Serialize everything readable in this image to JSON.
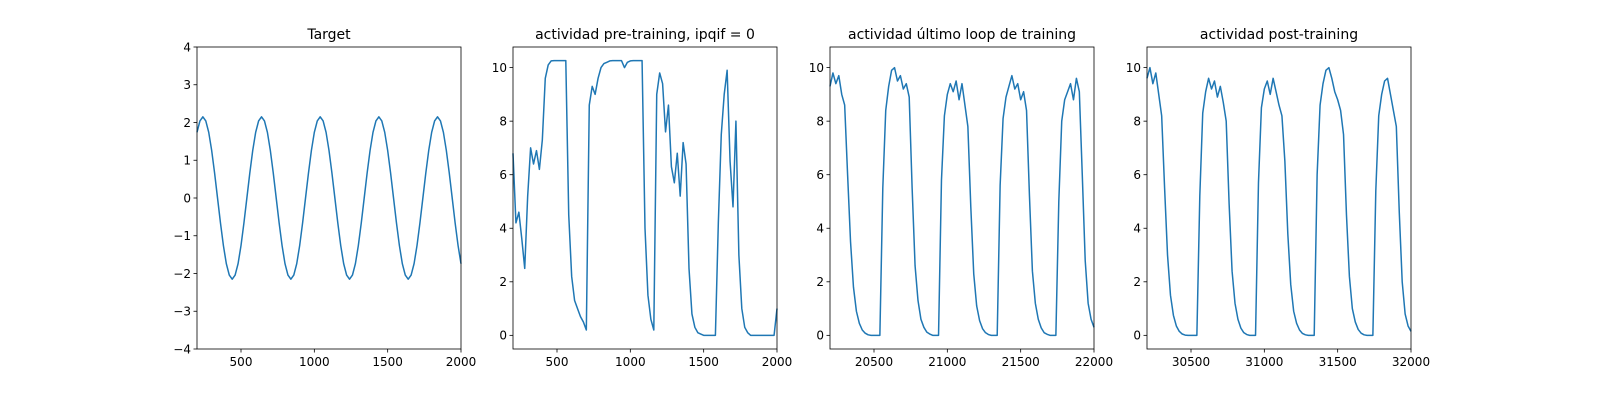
{
  "chart_data": [
    {
      "type": "line",
      "title": "Target",
      "color": "#1f77b4",
      "x": [
        200,
        220,
        240,
        260,
        280,
        300,
        320,
        340,
        360,
        380,
        400,
        420,
        440,
        460,
        480,
        500,
        520,
        540,
        560,
        580,
        600,
        620,
        640,
        660,
        680,
        700,
        720,
        740,
        760,
        780,
        800,
        820,
        840,
        860,
        880,
        900,
        920,
        940,
        960,
        980,
        1000,
        1020,
        1040,
        1060,
        1080,
        1100,
        1120,
        1140,
        1160,
        1180,
        1200,
        1220,
        1240,
        1260,
        1280,
        1300,
        1320,
        1340,
        1360,
        1380,
        1400,
        1420,
        1440,
        1460,
        1480,
        1500,
        1520,
        1540,
        1560,
        1580,
        1600,
        1620,
        1640,
        1660,
        1680,
        1700,
        1720,
        1740,
        1760,
        1780,
        1800,
        1820,
        1840,
        1860,
        1880,
        1900,
        1920,
        1940,
        1960,
        1980,
        2000
      ],
      "values": [
        1.74,
        2.04,
        2.15,
        2.04,
        1.74,
        1.26,
        0.66,
        0,
        -0.66,
        -1.26,
        -1.74,
        -2.04,
        -2.15,
        -2.04,
        -1.74,
        -1.26,
        -0.66,
        0,
        0.66,
        1.26,
        1.74,
        2.04,
        2.15,
        2.04,
        1.74,
        1.26,
        0.66,
        0,
        -0.66,
        -1.26,
        -1.74,
        -2.04,
        -2.15,
        -2.04,
        -1.74,
        -1.26,
        -0.66,
        0,
        0.66,
        1.26,
        1.74,
        2.04,
        2.15,
        2.04,
        1.74,
        1.26,
        0.66,
        0,
        -0.66,
        -1.26,
        -1.74,
        -2.04,
        -2.15,
        -2.04,
        -1.74,
        -1.26,
        -0.66,
        0,
        0.66,
        1.26,
        1.74,
        2.04,
        2.15,
        2.04,
        1.74,
        1.26,
        0.66,
        0,
        -0.66,
        -1.26,
        -1.74,
        -2.04,
        -2.15,
        -2.04,
        -1.74,
        -1.26,
        -0.66,
        0,
        0.66,
        1.26,
        1.74,
        2.04,
        2.15,
        2.04,
        1.74,
        1.26,
        0.66,
        0,
        -0.66,
        -1.26,
        -1.74
      ],
      "xlim": [
        200,
        2000
      ],
      "ylim": [
        -4,
        4
      ],
      "xticks": [
        500,
        1000,
        1500,
        2000
      ],
      "yticks": [
        {
          "value": -4,
          "label": "−4"
        },
        {
          "value": -3,
          "label": "−3"
        },
        {
          "value": -2,
          "label": "−2"
        },
        {
          "value": -1,
          "label": "−1"
        },
        0,
        1,
        2,
        3,
        4
      ]
    },
    {
      "type": "line",
      "title": "actividad pre-training, ipqif = 0",
      "color": "#1f77b4",
      "x": [
        200,
        220,
        240,
        260,
        280,
        300,
        320,
        340,
        360,
        380,
        400,
        420,
        440,
        460,
        480,
        500,
        520,
        540,
        560,
        580,
        600,
        620,
        640,
        660,
        680,
        700,
        720,
        740,
        760,
        780,
        800,
        820,
        840,
        860,
        880,
        900,
        920,
        940,
        960,
        980,
        1000,
        1020,
        1040,
        1060,
        1080,
        1100,
        1120,
        1140,
        1160,
        1180,
        1200,
        1220,
        1240,
        1260,
        1280,
        1300,
        1320,
        1340,
        1360,
        1380,
        1400,
        1420,
        1440,
        1460,
        1480,
        1500,
        1520,
        1540,
        1560,
        1580,
        1600,
        1620,
        1640,
        1660,
        1680,
        1700,
        1720,
        1740,
        1760,
        1780,
        1800,
        1820,
        1840,
        1860,
        1880,
        1900,
        1920,
        1940,
        1960,
        1980,
        2000
      ],
      "values": [
        6.8,
        4.2,
        4.6,
        3.6,
        2.5,
        5.2,
        7.0,
        6.4,
        6.9,
        6.2,
        7.3,
        9.6,
        10.1,
        10.25,
        10.26,
        10.26,
        10.26,
        10.26,
        10.26,
        4.5,
        2.2,
        1.3,
        1.0,
        0.7,
        0.5,
        0.2,
        8.6,
        9.3,
        9.0,
        9.6,
        10.0,
        10.15,
        10.2,
        10.25,
        10.26,
        10.26,
        10.26,
        10.26,
        10.0,
        10.2,
        10.25,
        10.26,
        10.26,
        10.26,
        10.26,
        4.0,
        1.5,
        0.6,
        0.2,
        9.0,
        9.8,
        9.4,
        7.6,
        8.6,
        6.3,
        5.7,
        6.8,
        5.2,
        7.2,
        6.4,
        2.5,
        0.8,
        0.3,
        0.1,
        0.05,
        0,
        0,
        0,
        0,
        0,
        4.2,
        7.5,
        9.0,
        9.9,
        6.5,
        4.8,
        8.0,
        3.0,
        1.0,
        0.3,
        0.1,
        0,
        0,
        0,
        0,
        0,
        0,
        0,
        0,
        0,
        1.0
      ],
      "xlim": [
        200,
        2000
      ],
      "ylim": [
        -0.51,
        10.77
      ],
      "xticks": [
        500,
        1000,
        1500,
        2000
      ],
      "yticks": [
        0,
        2,
        4,
        6,
        8,
        10
      ]
    },
    {
      "type": "line",
      "title": "actividad último loop de training",
      "color": "#1f77b4",
      "x": [
        20200,
        20220,
        20240,
        20260,
        20280,
        20300,
        20320,
        20340,
        20360,
        20380,
        20400,
        20420,
        20440,
        20460,
        20480,
        20500,
        20520,
        20540,
        20560,
        20580,
        20600,
        20620,
        20640,
        20660,
        20680,
        20700,
        20720,
        20740,
        20760,
        20780,
        20800,
        20820,
        20840,
        20860,
        20880,
        20900,
        20920,
        20940,
        20960,
        20980,
        21000,
        21020,
        21040,
        21060,
        21080,
        21100,
        21120,
        21140,
        21160,
        21180,
        21200,
        21220,
        21240,
        21260,
        21280,
        21300,
        21320,
        21340,
        21360,
        21380,
        21400,
        21420,
        21440,
        21460,
        21480,
        21500,
        21520,
        21540,
        21560,
        21580,
        21600,
        21620,
        21640,
        21660,
        21680,
        21700,
        21720,
        21740,
        21760,
        21780,
        21800,
        21820,
        21840,
        21860,
        21880,
        21900,
        21920,
        21940,
        21960,
        21980,
        22000
      ],
      "values": [
        9.3,
        9.8,
        9.4,
        9.7,
        9.0,
        8.6,
        6.0,
        3.5,
        1.8,
        0.9,
        0.45,
        0.2,
        0.08,
        0.02,
        0,
        0,
        0,
        0,
        5.5,
        8.4,
        9.3,
        9.9,
        10.0,
        9.5,
        9.7,
        9.2,
        9.4,
        8.9,
        5.5,
        2.6,
        1.3,
        0.6,
        0.3,
        0.12,
        0.05,
        0,
        0,
        0,
        5.8,
        8.2,
        9.0,
        9.4,
        9.1,
        9.5,
        8.8,
        9.4,
        8.6,
        7.8,
        4.8,
        2.3,
        1.1,
        0.55,
        0.25,
        0.1,
        0.03,
        0,
        0,
        0,
        5.6,
        8.1,
        8.9,
        9.3,
        9.7,
        9.2,
        9.4,
        8.8,
        9.1,
        8.4,
        5.2,
        2.4,
        1.2,
        0.6,
        0.28,
        0.1,
        0.04,
        0,
        0,
        0,
        5.0,
        8.0,
        8.8,
        9.1,
        9.4,
        8.8,
        9.6,
        9.1,
        6.0,
        2.8,
        1.2,
        0.6,
        0.3
      ],
      "xlim": [
        20200,
        22000
      ],
      "ylim": [
        -0.51,
        10.77
      ],
      "xticks": [
        20500,
        21000,
        21500,
        22000
      ],
      "yticks": [
        0,
        2,
        4,
        6,
        8,
        10
      ]
    },
    {
      "type": "line",
      "title": "actividad post-training",
      "color": "#1f77b4",
      "x": [
        30200,
        30220,
        30240,
        30260,
        30280,
        30300,
        30320,
        30340,
        30360,
        30380,
        30400,
        30420,
        30440,
        30460,
        30480,
        30500,
        30520,
        30540,
        30560,
        30580,
        30600,
        30620,
        30640,
        30660,
        30680,
        30700,
        30720,
        30740,
        30760,
        30780,
        30800,
        30820,
        30840,
        30860,
        30880,
        30900,
        30920,
        30940,
        30960,
        30980,
        31000,
        31020,
        31040,
        31060,
        31080,
        31100,
        31120,
        31140,
        31160,
        31180,
        31200,
        31220,
        31240,
        31260,
        31280,
        31300,
        31320,
        31340,
        31360,
        31380,
        31400,
        31420,
        31440,
        31460,
        31480,
        31500,
        31520,
        31540,
        31560,
        31580,
        31600,
        31620,
        31640,
        31660,
        31680,
        31700,
        31720,
        31740,
        31760,
        31780,
        31800,
        31820,
        31840,
        31860,
        31880,
        31900,
        31920,
        31940,
        31960,
        31980,
        32000
      ],
      "values": [
        9.6,
        10.0,
        9.4,
        9.8,
        9.0,
        8.2,
        5.5,
        3.0,
        1.5,
        0.75,
        0.35,
        0.15,
        0.05,
        0.01,
        0,
        0,
        0,
        0,
        5.2,
        8.3,
        9.1,
        9.6,
        9.2,
        9.5,
        8.9,
        9.3,
        8.7,
        8.0,
        4.9,
        2.4,
        1.2,
        0.6,
        0.27,
        0.1,
        0.03,
        0,
        0,
        0,
        5.7,
        8.5,
        9.2,
        9.5,
        9.0,
        9.6,
        9.1,
        8.6,
        8.2,
        6.5,
        3.8,
        1.9,
        0.9,
        0.45,
        0.2,
        0.07,
        0.02,
        0,
        0,
        0,
        6.0,
        8.6,
        9.4,
        9.9,
        10.0,
        9.6,
        9.1,
        8.8,
        8.4,
        7.5,
        4.5,
        2.2,
        1.0,
        0.5,
        0.22,
        0.08,
        0.02,
        0,
        0,
        0,
        5.4,
        8.2,
        9.0,
        9.5,
        9.6,
        9.0,
        8.4,
        7.8,
        4.6,
        2.0,
        0.8,
        0.35,
        0.15
      ],
      "xlim": [
        30200,
        32000
      ],
      "ylim": [
        -0.51,
        10.77
      ],
      "xticks": [
        30500,
        31000,
        31500,
        32000
      ],
      "yticks": [
        0,
        2,
        4,
        6,
        8,
        10
      ]
    }
  ]
}
